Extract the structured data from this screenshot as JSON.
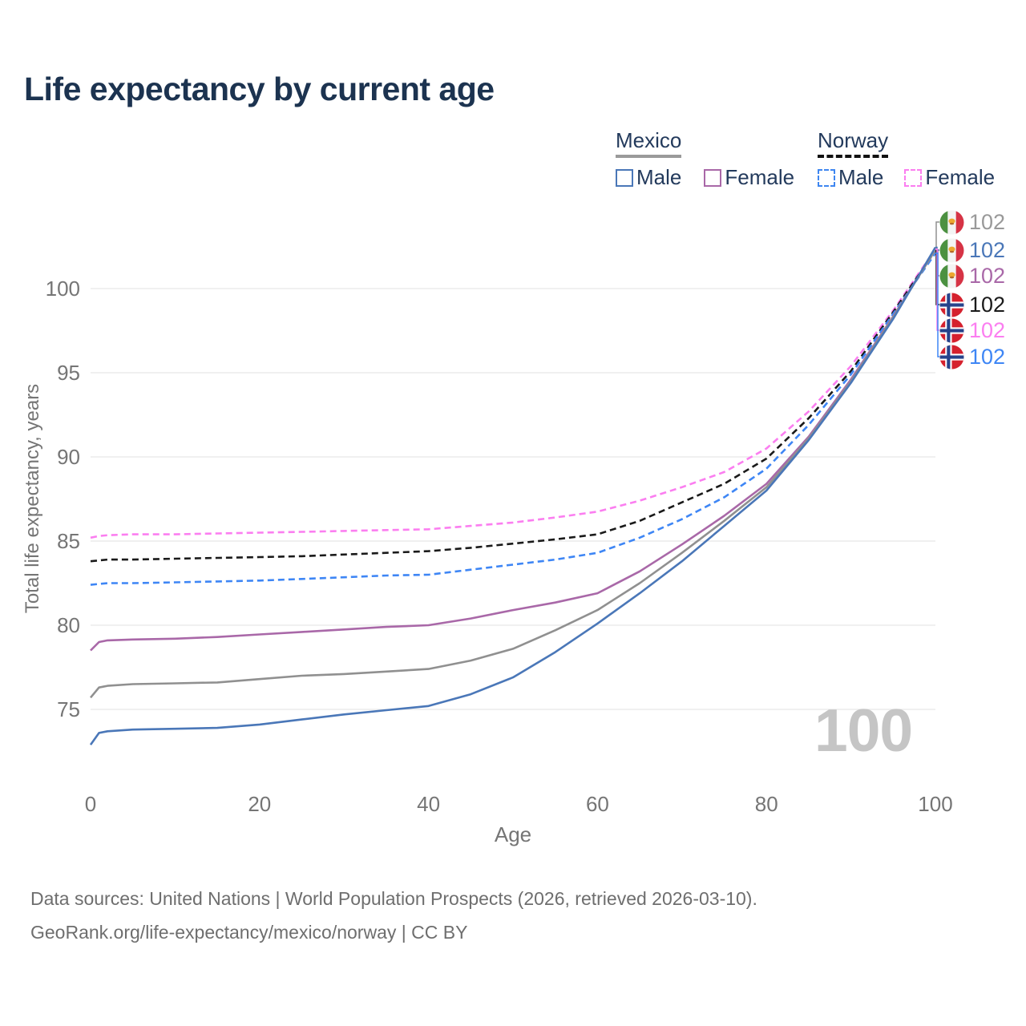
{
  "title": "Life expectancy by current age",
  "legend": {
    "mexico": {
      "label": "Mexico",
      "male_label": "Male",
      "female_label": "Female"
    },
    "norway": {
      "label": "Norway",
      "male_label": "Male",
      "female_label": "Female"
    }
  },
  "watermark_age": "100",
  "footer": {
    "line1": "Data sources: United Nations | World Population Prospects (2026, retrieved 2026-03-10).",
    "line2": "GeoRank.org/life-expectancy/mexico/norway | CC BY"
  },
  "colors": {
    "mexico_male": "#4a77b8",
    "mexico_female": "#a968a8",
    "mexico_both": "#909090",
    "norway_male": "#3e86f5",
    "norway_female": "#fb7ef0",
    "norway_both": "#1a1a1a",
    "title_text": "#1c3350",
    "axis_text": "#757575",
    "gridline": "#e6e6e6"
  },
  "chart_data": {
    "type": "line",
    "title": "Life expectancy by current age",
    "xlabel": "Age",
    "ylabel": "Total life expectancy, years",
    "xlim": [
      0,
      100
    ],
    "ylim": [
      72.5,
      103
    ],
    "xticks": [
      0,
      20,
      40,
      60,
      80,
      100
    ],
    "yticks": [
      75,
      80,
      85,
      90,
      95,
      100
    ],
    "grid": "horizontal",
    "legend_position": "top-right",
    "x_ages": [
      0,
      1,
      2,
      5,
      10,
      15,
      20,
      25,
      30,
      35,
      40,
      45,
      50,
      55,
      60,
      65,
      70,
      75,
      80,
      85,
      90,
      95,
      100
    ],
    "series": [
      {
        "id": "no_female",
        "name": "Norway Female",
        "color": "#fb7ef0",
        "dash": "8 5",
        "x": [
          0,
          1,
          2,
          5,
          10,
          15,
          20,
          25,
          30,
          35,
          40,
          45,
          50,
          55,
          60,
          65,
          70,
          75,
          80,
          85,
          90,
          95,
          100
        ],
        "y": [
          85.2,
          85.3,
          85.35,
          85.4,
          85.4,
          85.45,
          85.5,
          85.55,
          85.6,
          85.65,
          85.7,
          85.9,
          86.1,
          86.4,
          86.75,
          87.4,
          88.2,
          89.1,
          90.5,
          92.7,
          95.4,
          98.7,
          102.35
        ]
      },
      {
        "id": "no_both",
        "name": "Norway Both sexes",
        "color": "#1a1a1a",
        "dash": "8 5",
        "x": [
          0,
          1,
          2,
          5,
          10,
          15,
          20,
          25,
          30,
          35,
          40,
          45,
          50,
          55,
          60,
          65,
          70,
          75,
          80,
          85,
          90,
          95,
          100
        ],
        "y": [
          83.8,
          83.85,
          83.9,
          83.9,
          83.95,
          84.0,
          84.05,
          84.1,
          84.2,
          84.3,
          84.4,
          84.6,
          84.85,
          85.1,
          85.4,
          86.2,
          87.3,
          88.4,
          89.9,
          92.3,
          95.1,
          98.6,
          102.25
        ]
      },
      {
        "id": "no_male",
        "name": "Norway Male",
        "color": "#3e86f5",
        "dash": "8 5",
        "x": [
          0,
          1,
          2,
          5,
          10,
          15,
          20,
          25,
          30,
          35,
          40,
          45,
          50,
          55,
          60,
          65,
          70,
          75,
          80,
          85,
          90,
          95,
          100
        ],
        "y": [
          82.4,
          82.45,
          82.5,
          82.5,
          82.55,
          82.6,
          82.65,
          82.75,
          82.85,
          82.95,
          83.0,
          83.3,
          83.6,
          83.9,
          84.3,
          85.2,
          86.3,
          87.6,
          89.3,
          91.9,
          94.9,
          98.5,
          102.1
        ]
      },
      {
        "id": "mx_female",
        "name": "Mexico Female",
        "color": "#a968a8",
        "dash": null,
        "x": [
          0,
          1,
          2,
          5,
          10,
          15,
          20,
          25,
          30,
          35,
          40,
          45,
          50,
          55,
          60,
          65,
          70,
          75,
          80,
          85,
          90,
          95,
          100
        ],
        "y": [
          78.5,
          79.0,
          79.1,
          79.15,
          79.2,
          79.3,
          79.45,
          79.6,
          79.75,
          79.9,
          80.0,
          80.4,
          80.9,
          81.35,
          81.9,
          83.2,
          84.8,
          86.5,
          88.4,
          91.2,
          94.6,
          98.35,
          102.3
        ]
      },
      {
        "id": "mx_both",
        "name": "Mexico Both sexes",
        "color": "#909090",
        "dash": null,
        "x": [
          0,
          1,
          2,
          5,
          10,
          15,
          20,
          25,
          30,
          35,
          40,
          45,
          50,
          55,
          60,
          65,
          70,
          75,
          80,
          85,
          90,
          95,
          100
        ],
        "y": [
          75.7,
          76.3,
          76.4,
          76.5,
          76.55,
          76.6,
          76.8,
          77.0,
          77.1,
          77.25,
          77.4,
          77.9,
          78.6,
          79.7,
          80.9,
          82.5,
          84.3,
          86.2,
          88.2,
          91.1,
          94.5,
          98.3,
          102.3
        ]
      },
      {
        "id": "mx_male",
        "name": "Mexico Male",
        "color": "#4a77b8",
        "dash": null,
        "x": [
          0,
          1,
          2,
          5,
          10,
          15,
          20,
          25,
          30,
          35,
          40,
          45,
          50,
          55,
          60,
          65,
          70,
          75,
          80,
          85,
          90,
          95,
          100
        ],
        "y": [
          72.9,
          73.6,
          73.7,
          73.8,
          73.85,
          73.9,
          74.1,
          74.4,
          74.7,
          74.95,
          75.2,
          75.9,
          76.9,
          78.4,
          80.1,
          81.9,
          83.8,
          85.9,
          88.0,
          91.0,
          94.4,
          98.2,
          102.45
        ]
      }
    ],
    "right_labels": [
      {
        "series_id": "mx_both",
        "flag": "mexico",
        "value": "102",
        "color": "#999999"
      },
      {
        "series_id": "mx_male",
        "flag": "mexico",
        "value": "102",
        "color": "#4a77b8"
      },
      {
        "series_id": "mx_female",
        "flag": "mexico",
        "value": "102",
        "color": "#a968a8"
      },
      {
        "series_id": "no_both",
        "flag": "norway",
        "value": "102",
        "color": "#1a1a1a"
      },
      {
        "series_id": "no_female",
        "flag": "norway",
        "value": "102",
        "color": "#fb7ef0"
      },
      {
        "series_id": "no_male",
        "flag": "norway",
        "value": "102",
        "color": "#3e86f5"
      }
    ]
  }
}
